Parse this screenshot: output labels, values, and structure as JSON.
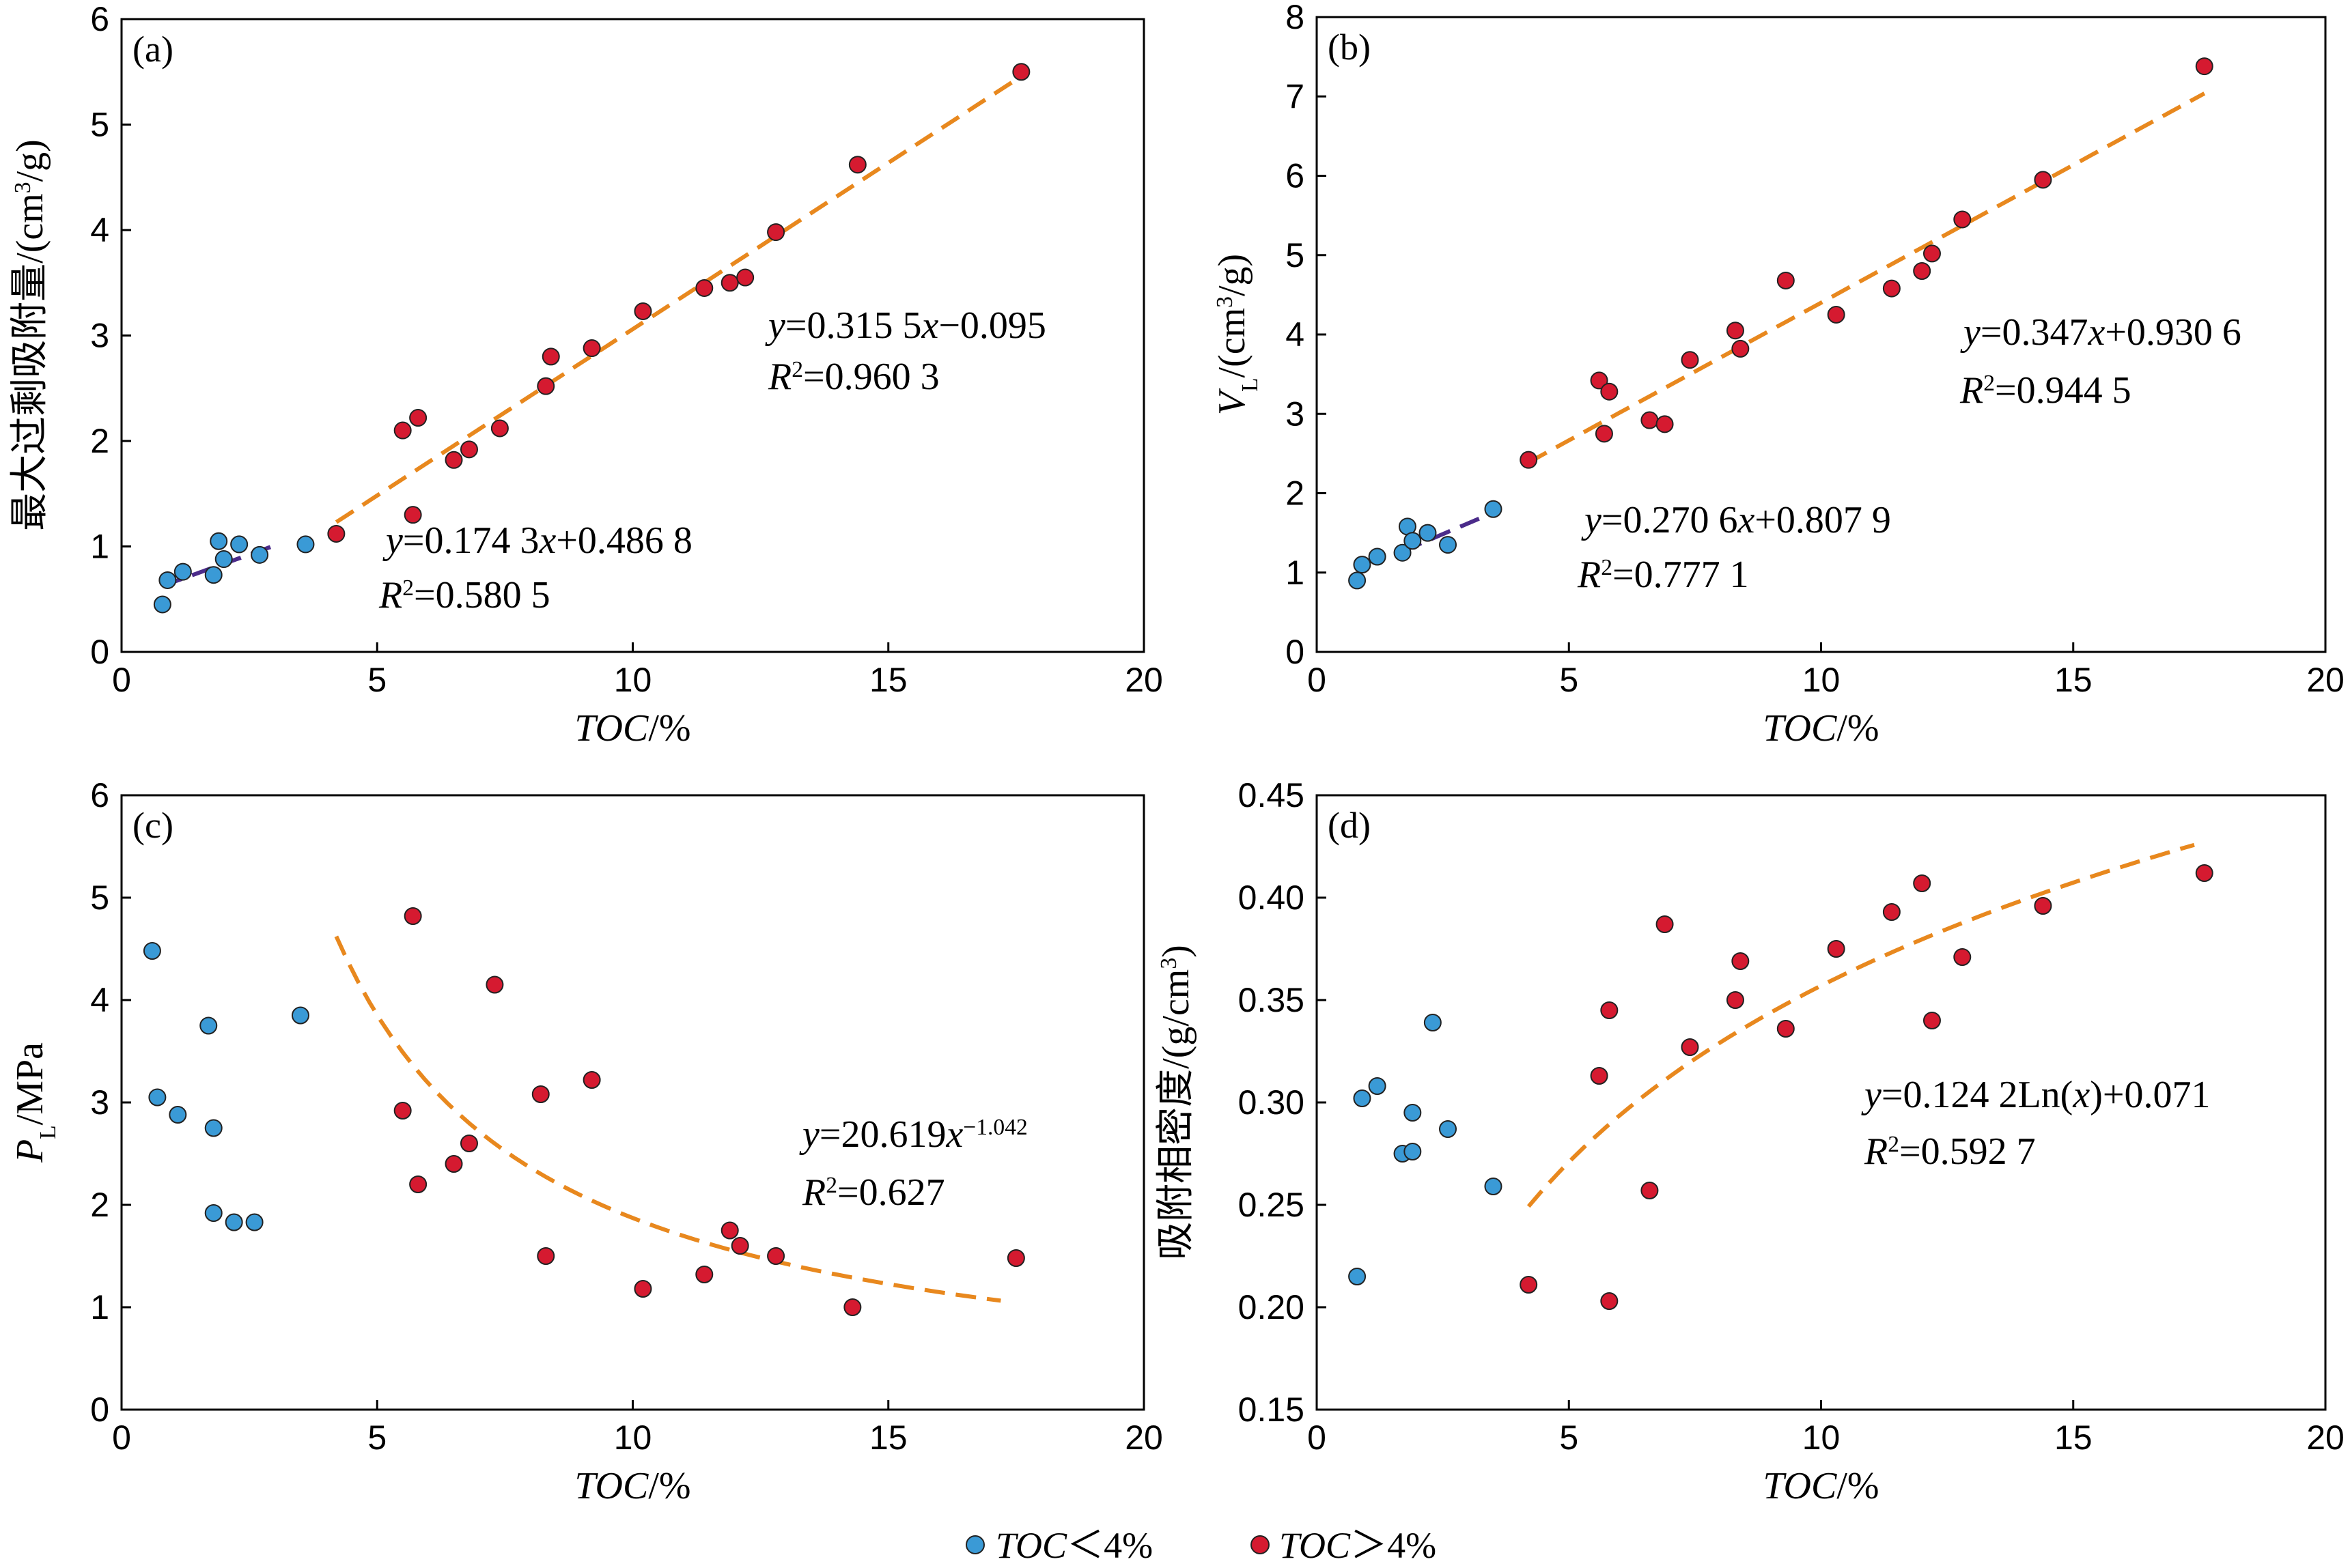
{
  "legend": {
    "low_label_prefix": "TOC",
    "low_label_suffix": "＜4%",
    "high_label_prefix": "TOC",
    "high_label_suffix": "＞4%",
    "colors": {
      "low": "#3a9ad6",
      "high": "#d51a30",
      "fit_high": "#e8881e",
      "fit_low": "#4b2b8a"
    }
  },
  "chart_data": [
    {
      "type": "scatter",
      "panel": "(a)",
      "xlabel": "TOC/%",
      "ylabel": "最大过剩吸附量/(cm³/g)",
      "xlim": [
        0,
        20
      ],
      "ylim": [
        0,
        6
      ],
      "xticks": [
        0,
        5,
        10,
        15,
        20
      ],
      "yticks": [
        0,
        1,
        2,
        3,
        4,
        5,
        6
      ],
      "series": [
        {
          "name": "TOC＜4%",
          "x": [
            0.8,
            0.9,
            1.2,
            1.8,
            1.9,
            2.0,
            2.3,
            2.7,
            3.6
          ],
          "y": [
            0.45,
            0.68,
            0.76,
            0.73,
            1.05,
            0.88,
            1.02,
            0.92,
            1.02
          ]
        },
        {
          "name": "TOC＞4%",
          "x": [
            4.2,
            5.5,
            5.7,
            5.8,
            6.5,
            6.8,
            7.4,
            8.3,
            8.4,
            9.2,
            10.2,
            11.4,
            11.9,
            12.2,
            12.8,
            14.4,
            17.6
          ],
          "y": [
            1.12,
            2.1,
            1.3,
            2.22,
            1.82,
            1.92,
            2.12,
            2.52,
            2.8,
            2.88,
            3.23,
            3.45,
            3.5,
            3.55,
            3.98,
            4.62,
            5.5
          ]
        }
      ],
      "fits": [
        {
          "series": "TOC＞4%",
          "kind": "linear",
          "slope": 0.3155,
          "intercept": -0.095,
          "x_range": [
            4.2,
            17.6
          ],
          "equation": "y=0.315 5x−0.095",
          "r2": "R²=0.960 3"
        },
        {
          "series": "TOC＜4%",
          "kind": "linear",
          "slope": 0.1743,
          "intercept": 0.4868,
          "x_range": [
            0.8,
            3.1
          ],
          "equation": "y=0.174 3x+0.486 8",
          "r2": "R²=0.580 5"
        }
      ]
    },
    {
      "type": "scatter",
      "panel": "(b)",
      "xlabel": "TOC/%",
      "ylabel": "VL/(cm³/g)",
      "xlim": [
        0,
        20
      ],
      "ylim": [
        0,
        8
      ],
      "xticks": [
        0,
        5,
        10,
        15,
        20
      ],
      "yticks": [
        0,
        1,
        2,
        3,
        4,
        5,
        6,
        7,
        8
      ],
      "series": [
        {
          "name": "TOC＜4%",
          "x": [
            0.8,
            0.9,
            1.2,
            1.7,
            1.8,
            1.9,
            2.2,
            2.6,
            3.5
          ],
          "y": [
            0.9,
            1.1,
            1.2,
            1.25,
            1.58,
            1.4,
            1.5,
            1.35,
            1.8
          ]
        },
        {
          "name": "TOC＞4%",
          "x": [
            4.2,
            5.6,
            5.7,
            5.8,
            6.6,
            6.9,
            7.4,
            8.3,
            8.4,
            9.3,
            10.3,
            11.4,
            12.0,
            12.2,
            12.8,
            14.4,
            17.6
          ],
          "y": [
            2.42,
            3.42,
            2.75,
            3.28,
            2.92,
            2.87,
            3.68,
            4.05,
            3.82,
            4.68,
            4.25,
            4.58,
            4.8,
            5.02,
            5.45,
            5.95,
            7.38
          ]
        }
      ],
      "fits": [
        {
          "series": "TOC＞4%",
          "kind": "linear",
          "slope": 0.347,
          "intercept": 0.9306,
          "x_range": [
            4.2,
            17.6
          ],
          "equation": "y=0.347x+0.930 6",
          "r2": "R²=0.944 5"
        },
        {
          "series": "TOC＜4%",
          "kind": "linear",
          "slope": 0.2706,
          "intercept": 0.8079,
          "x_range": [
            1.7,
            3.5
          ],
          "equation": "y=0.270 6x+0.807 9",
          "r2": "R²=0.777 1"
        }
      ]
    },
    {
      "type": "scatter",
      "panel": "(c)",
      "xlabel": "TOC/%",
      "ylabel": "PL/MPa",
      "xlim": [
        0,
        20
      ],
      "ylim": [
        0,
        6
      ],
      "xticks": [
        0,
        5,
        10,
        15,
        20
      ],
      "yticks": [
        0,
        1,
        2,
        3,
        4,
        5,
        6
      ],
      "series": [
        {
          "name": "TOC＜4%",
          "x": [
            0.6,
            0.7,
            1.1,
            1.7,
            1.8,
            1.8,
            2.2,
            2.6,
            3.5
          ],
          "y": [
            4.48,
            3.05,
            2.88,
            3.75,
            2.75,
            1.92,
            1.83,
            1.83,
            3.85
          ]
        },
        {
          "name": "TOC＞4%",
          "x": [
            5.5,
            5.7,
            5.8,
            6.5,
            6.8,
            7.3,
            8.2,
            8.3,
            9.2,
            10.2,
            11.4,
            11.9,
            12.1,
            12.8,
            14.3,
            17.5
          ],
          "y": [
            2.92,
            4.82,
            2.2,
            2.4,
            2.6,
            4.15,
            3.08,
            1.5,
            3.22,
            1.18,
            1.32,
            1.75,
            1.6,
            1.5,
            1.0,
            1.48
          ]
        }
      ],
      "fits": [
        {
          "series": "TOC＞4%",
          "kind": "power",
          "a": 20.619,
          "b": -1.042,
          "x_range": [
            4.2,
            17.2
          ],
          "equation": "y=20.619x−1.042",
          "r2": "R²=0.627"
        }
      ]
    },
    {
      "type": "scatter",
      "panel": "(d)",
      "xlabel": "TOC/%",
      "ylabel": "吸附相密度/(g/cm³)",
      "xlim": [
        0,
        20
      ],
      "ylim": [
        0.15,
        0.45
      ],
      "xticks": [
        0,
        5,
        10,
        15,
        20
      ],
      "yticks": [
        0.15,
        0.2,
        0.25,
        0.3,
        0.35,
        0.4,
        0.45
      ],
      "series": [
        {
          "name": "TOC＜4%",
          "x": [
            0.8,
            0.9,
            1.2,
            1.7,
            1.9,
            1.9,
            2.3,
            2.6,
            3.5
          ],
          "y": [
            0.215,
            0.302,
            0.308,
            0.275,
            0.276,
            0.295,
            0.339,
            0.287,
            0.259
          ]
        },
        {
          "name": "TOC＞4%",
          "x": [
            4.2,
            5.6,
            5.8,
            5.8,
            6.6,
            6.9,
            7.4,
            8.3,
            8.4,
            9.3,
            10.3,
            11.4,
            12.0,
            12.2,
            12.8,
            14.4,
            17.6
          ],
          "y": [
            0.211,
            0.313,
            0.203,
            0.345,
            0.257,
            0.387,
            0.327,
            0.35,
            0.369,
            0.336,
            0.375,
            0.393,
            0.407,
            0.34,
            0.371,
            0.396,
            0.412
          ]
        }
      ],
      "fits": [
        {
          "series": "TOC＞4%",
          "kind": "log",
          "a": 0.1242,
          "b": 0.071,
          "x_range": [
            4.2,
            17.4
          ],
          "equation": "y=0.124 2Ln(x)+0.071",
          "r2": "R²=0.592 7"
        }
      ]
    }
  ]
}
